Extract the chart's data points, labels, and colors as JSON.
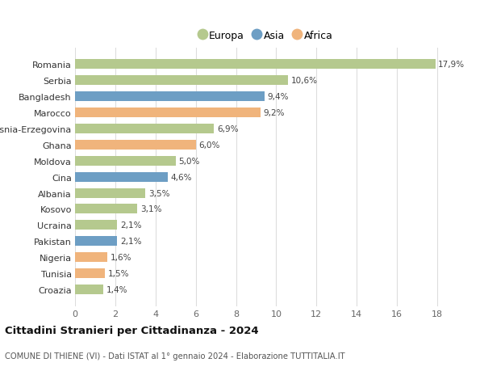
{
  "countries": [
    "Croazia",
    "Tunisia",
    "Nigeria",
    "Pakistan",
    "Ucraina",
    "Kosovo",
    "Albania",
    "Cina",
    "Moldova",
    "Ghana",
    "Bosnia-Erzegovina",
    "Marocco",
    "Bangladesh",
    "Serbia",
    "Romania"
  ],
  "values": [
    1.4,
    1.5,
    1.6,
    2.1,
    2.1,
    3.1,
    3.5,
    4.6,
    5.0,
    6.0,
    6.9,
    9.2,
    9.4,
    10.6,
    17.9
  ],
  "continents": [
    "Europa",
    "Africa",
    "Africa",
    "Asia",
    "Europa",
    "Europa",
    "Europa",
    "Asia",
    "Europa",
    "Africa",
    "Europa",
    "Africa",
    "Asia",
    "Europa",
    "Europa"
  ],
  "colors": {
    "Europa": "#b5c98e",
    "Asia": "#6d9ec4",
    "Africa": "#f0b47c"
  },
  "labels": [
    "1,4%",
    "1,5%",
    "1,6%",
    "2,1%",
    "2,1%",
    "3,1%",
    "3,5%",
    "4,6%",
    "5,0%",
    "6,0%",
    "6,9%",
    "9,2%",
    "9,4%",
    "10,6%",
    "17,9%"
  ],
  "title": "Cittadini Stranieri per Cittadinanza - 2024",
  "subtitle": "COMUNE DI THIENE (VI) - Dati ISTAT al 1° gennaio 2024 - Elaborazione TUTTITALIA.IT",
  "xlim": [
    0,
    19
  ],
  "xticks": [
    0,
    2,
    4,
    6,
    8,
    10,
    12,
    14,
    16,
    18
  ],
  "legend_order": [
    "Europa",
    "Asia",
    "Africa"
  ],
  "background_color": "#ffffff",
  "grid_color": "#dddddd",
  "bar_height": 0.6
}
